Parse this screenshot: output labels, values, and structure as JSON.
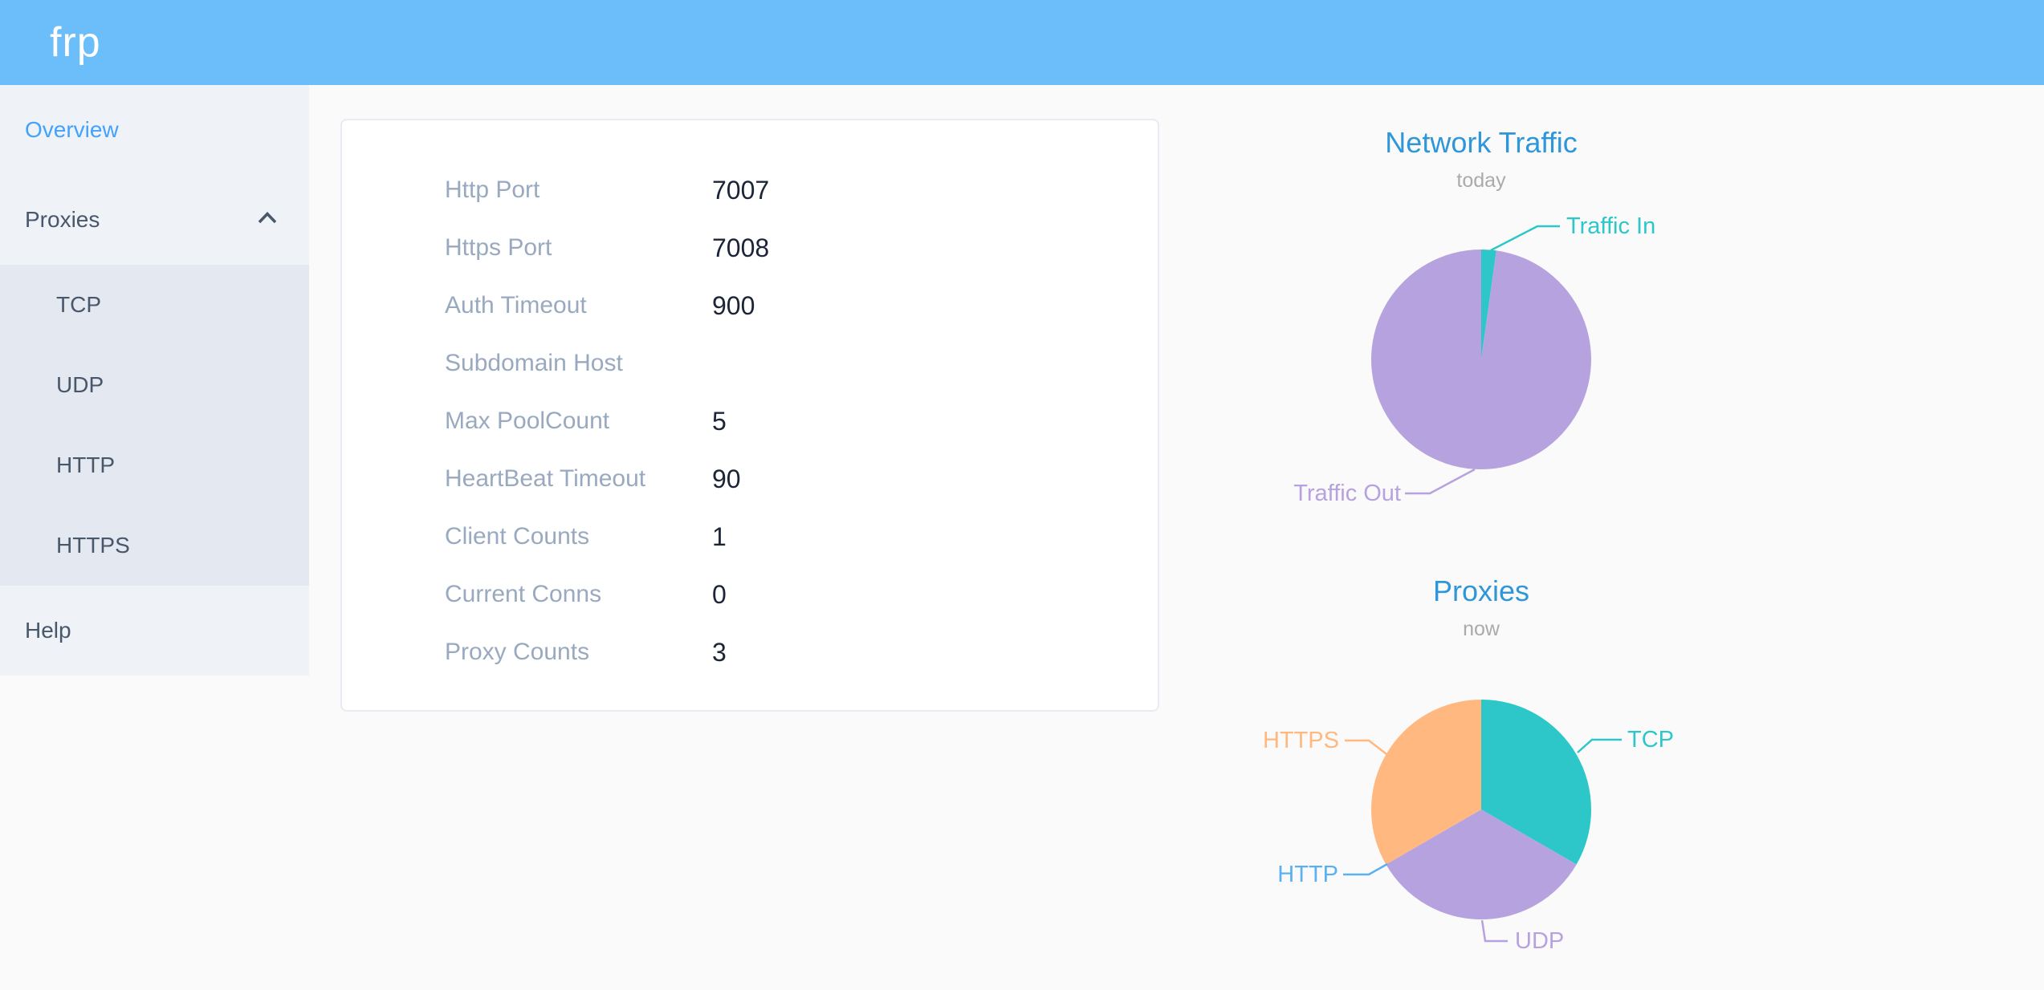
{
  "header": {
    "logo_text": "frp"
  },
  "sidebar": {
    "overview_label": "Overview",
    "proxies_label": "Proxies",
    "proxy_types": [
      "TCP",
      "UDP",
      "HTTP",
      "HTTPS"
    ],
    "help_label": "Help"
  },
  "overview_card": {
    "rows": [
      {
        "label": "Http Port",
        "value": "7007"
      },
      {
        "label": "Https Port",
        "value": "7008"
      },
      {
        "label": "Auth Timeout",
        "value": "900"
      },
      {
        "label": "Subdomain Host",
        "value": ""
      },
      {
        "label": "Max PoolCount",
        "value": "5"
      },
      {
        "label": "HeartBeat Timeout",
        "value": "90"
      },
      {
        "label": "Client Counts",
        "value": "1"
      },
      {
        "label": "Current Conns",
        "value": "0"
      },
      {
        "label": "Proxy Counts",
        "value": "3"
      }
    ]
  },
  "chart_data": [
    {
      "type": "pie",
      "title": "Network Traffic",
      "subtitle": "today",
      "legend_position": "none",
      "slices": [
        {
          "label": "Traffic In",
          "value": 2.2,
          "color": "#2ec7c9"
        },
        {
          "label": "Traffic Out",
          "value": 97.8,
          "color": "#b6a2de"
        }
      ]
    },
    {
      "type": "pie",
      "title": "Proxies",
      "subtitle": "now",
      "legend_position": "none",
      "slices": [
        {
          "label": "TCP",
          "value": 1,
          "color": "#2ec7c9"
        },
        {
          "label": "UDP",
          "value": 1,
          "color": "#b6a2de"
        },
        {
          "label": "HTTP",
          "value": 0,
          "color": "#5ab1ef"
        },
        {
          "label": "HTTPS",
          "value": 1,
          "color": "#ffb980"
        }
      ]
    }
  ],
  "colors": {
    "header_bg": "#6cbefb",
    "sidebar_bg": "#eff2f7",
    "submenu_bg": "#e4e8f1",
    "menu_text": "#48576a",
    "menu_active_text": "#42a2fc",
    "chart_title": "#2e96d9",
    "chart_subtitle": "#aaaaaa",
    "card_label": "#99a9bf",
    "card_value": "#1c2438",
    "page_bg": "#fafafa",
    "card_bg": "#ffffff",
    "card_border": "#e8ebf3"
  }
}
